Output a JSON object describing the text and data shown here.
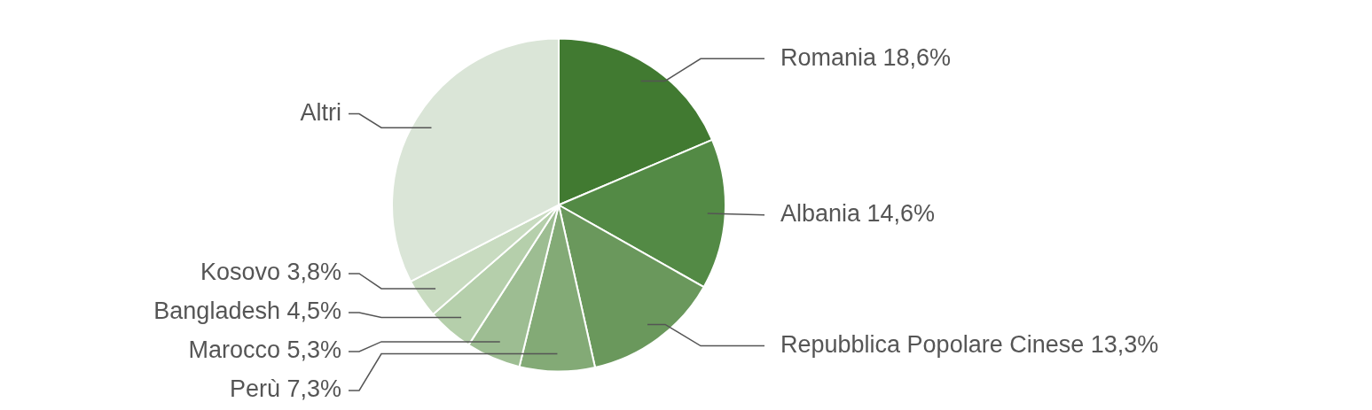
{
  "chart_data": {
    "type": "pie",
    "categories": [
      "Romania",
      "Albania",
      "Repubblica Popolare Cinese",
      "Perù",
      "Marocco",
      "Bangladesh",
      "Kosovo",
      "Altri"
    ],
    "values": [
      18.6,
      14.6,
      13.3,
      7.3,
      5.3,
      4.5,
      3.8,
      32.6
    ],
    "value_labels": [
      "18,6%",
      "14,6%",
      "13,3%",
      "7,3%",
      "5,3%",
      "4,5%",
      "3,8%",
      null
    ],
    "colors": [
      "#417a31",
      "#538a45",
      "#6a985c",
      "#83aa76",
      "#9dbd92",
      "#b5cfab",
      "#c8dbc0",
      "#dae5d7"
    ]
  }
}
